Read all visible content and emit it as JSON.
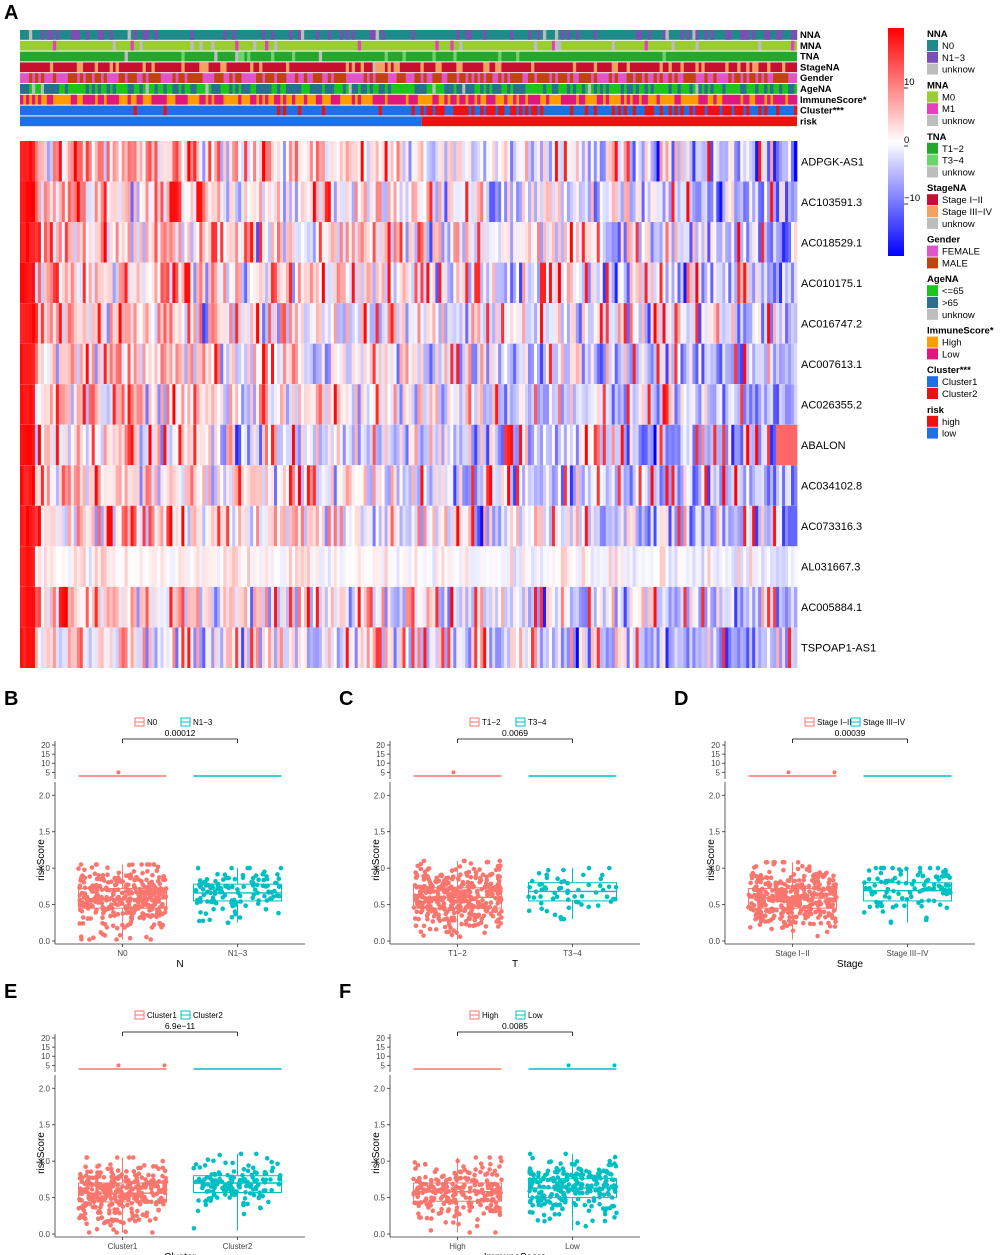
{
  "panel_A": {
    "letter": "A",
    "annotation_tracks": [
      "NNA",
      "MNA",
      "TNA",
      "StageNA",
      "Gender",
      "AgeNA",
      "ImmuneScore*",
      "Cluster***",
      "risk"
    ],
    "genes": [
      "ADPGK-AS1",
      "AC103591.3",
      "AC018529.1",
      "AC010175.1",
      "AC016747.2",
      "AC007613.1",
      "AC026355.2",
      "ABALON",
      "AC034102.8",
      "AC073316.3",
      "AL031667.3",
      "AC005884.1",
      "TSPOAP1-AS1"
    ],
    "colorbar": {
      "ticks": [
        "10",
        "0",
        "−10"
      ],
      "high_color": "#ff0000",
      "mid_color": "#ffffff",
      "low_color": "#0000ff"
    },
    "legend": [
      {
        "title": "NNA",
        "items": [
          {
            "label": "N0",
            "color": "#1f8a8a"
          },
          {
            "label": "N1−3",
            "color": "#7b4fb3"
          },
          {
            "label": "unknow",
            "color": "#bdbdbd"
          }
        ]
      },
      {
        "title": "MNA",
        "items": [
          {
            "label": "M0",
            "color": "#9acd32"
          },
          {
            "label": "M1",
            "color": "#e83fbd"
          },
          {
            "label": "unknow",
            "color": "#bdbdbd"
          }
        ]
      },
      {
        "title": "TNA",
        "items": [
          {
            "label": "T1−2",
            "color": "#22a82a"
          },
          {
            "label": "T3−4",
            "color": "#6bd46b"
          },
          {
            "label": "unknow",
            "color": "#bdbdbd"
          }
        ]
      },
      {
        "title": "StageNA",
        "items": [
          {
            "label": "Stage I−II",
            "color": "#c8102e"
          },
          {
            "label": "Stage III−IV",
            "color": "#f4a261"
          },
          {
            "label": "unknow",
            "color": "#bdbdbd"
          }
        ]
      },
      {
        "title": "Gender",
        "items": [
          {
            "label": "FEMALE",
            "color": "#e056c8"
          },
          {
            "label": "MALE",
            "color": "#c1440e"
          }
        ]
      },
      {
        "title": "AgeNA",
        "items": [
          {
            "label": "<=65",
            "color": "#1ec41e"
          },
          {
            "label": ">65",
            "color": "#2a6f8f"
          },
          {
            "label": "unknow",
            "color": "#bdbdbd"
          }
        ]
      },
      {
        "title": "ImmuneScore*",
        "items": [
          {
            "label": "High",
            "color": "#ff9d00"
          },
          {
            "label": "Low",
            "color": "#e0177e"
          }
        ]
      },
      {
        "title": "Cluster***",
        "items": [
          {
            "label": "Cluster1",
            "color": "#1f6fe5"
          },
          {
            "label": "Cluster2",
            "color": "#ee1111"
          }
        ]
      },
      {
        "title": "risk",
        "items": [
          {
            "label": "high",
            "color": "#ee1111"
          },
          {
            "label": "low",
            "color": "#1f6fe5"
          }
        ]
      }
    ]
  },
  "chart_data": [
    {
      "panel": "B",
      "type": "boxplot+jitter",
      "categories": [
        "N0",
        "N1−3"
      ],
      "legend": [
        "N0",
        "N1−3"
      ],
      "xlabel": "N",
      "ylabel": "riskScore",
      "p_value": "0.00012",
      "colors": [
        "#f8766d",
        "#00bfc4"
      ],
      "ylim_lower": [
        0,
        2.1
      ],
      "upper_ticks": [
        "20",
        "15",
        "10",
        "5"
      ],
      "lower_ticks": [
        "0.0",
        "0.5",
        "1.0",
        "1.5",
        "2.0"
      ],
      "boxes": [
        {
          "q1": 0.45,
          "median": 0.58,
          "q3": 0.72,
          "min": 0.02,
          "max": 1.05
        },
        {
          "q1": 0.55,
          "median": 0.66,
          "q3": 0.78,
          "min": 0.25,
          "max": 1.0
        }
      ],
      "n_points": [
        340,
        130
      ],
      "outliers": [
        [
          "5"
        ],
        []
      ]
    },
    {
      "panel": "C",
      "type": "boxplot+jitter",
      "categories": [
        "T1−2",
        "T3−4"
      ],
      "legend": [
        "T1−2",
        "T3−4"
      ],
      "xlabel": "T",
      "ylabel": "riskScore",
      "p_value": "0.0069",
      "colors": [
        "#f8766d",
        "#00bfc4"
      ],
      "ylim_lower": [
        0,
        2.1
      ],
      "upper_ticks": [
        "20",
        "15",
        "10",
        "5"
      ],
      "lower_ticks": [
        "0.0",
        "0.5",
        "1.0",
        "1.5",
        "2.0"
      ],
      "boxes": [
        {
          "q1": 0.45,
          "median": 0.6,
          "q3": 0.73,
          "min": 0.02,
          "max": 1.1
        },
        {
          "q1": 0.55,
          "median": 0.68,
          "q3": 0.8,
          "min": 0.3,
          "max": 1.0
        }
      ],
      "n_points": [
        380,
        60
      ],
      "outliers": [
        [
          "5"
        ],
        []
      ]
    },
    {
      "panel": "D",
      "type": "boxplot+jitter",
      "categories": [
        "Stage I−II",
        "Stage III−IV"
      ],
      "legend": [
        "Stage I−II",
        "Stage III−IV"
      ],
      "xlabel": "Stage",
      "ylabel": "riskScore",
      "p_value": "0.00039",
      "colors": [
        "#f8766d",
        "#00bfc4"
      ],
      "ylim_lower": [
        0,
        2.1
      ],
      "upper_ticks": [
        "20",
        "15",
        "10",
        "5"
      ],
      "lower_ticks": [
        "0.0",
        "0.5",
        "1.0",
        "1.5",
        "2.0"
      ],
      "boxes": [
        {
          "q1": 0.45,
          "median": 0.59,
          "q3": 0.72,
          "min": 0.02,
          "max": 1.08
        },
        {
          "q1": 0.55,
          "median": 0.69,
          "q3": 0.8,
          "min": 0.25,
          "max": 1.0
        }
      ],
      "n_points": [
        360,
        110
      ],
      "outliers": [
        [
          "5",
          "5"
        ],
        []
      ]
    },
    {
      "panel": "E",
      "type": "boxplot+jitter",
      "categories": [
        "Cluster1",
        "Cluster2"
      ],
      "legend": [
        "Cluster1",
        "Cluster2"
      ],
      "xlabel": "Cluster",
      "ylabel": "riskScore",
      "p_value": "6.9e−11",
      "colors": [
        "#f8766d",
        "#00bfc4"
      ],
      "ylim_lower": [
        0,
        2.1
      ],
      "upper_ticks": [
        "20",
        "15",
        "10",
        "5"
      ],
      "lower_ticks": [
        "0.0",
        "0.5",
        "1.0",
        "1.5",
        "2.0"
      ],
      "boxes": [
        {
          "q1": 0.44,
          "median": 0.56,
          "q3": 0.7,
          "min": 0.02,
          "max": 1.05
        },
        {
          "q1": 0.57,
          "median": 0.7,
          "q3": 0.8,
          "min": 0.05,
          "max": 1.1
        }
      ],
      "n_points": [
        330,
        150
      ],
      "outliers": [
        [
          "5",
          "5"
        ],
        []
      ]
    },
    {
      "panel": "F",
      "type": "boxplot+jitter",
      "categories": [
        "High",
        "Low"
      ],
      "legend": [
        "High",
        "Low"
      ],
      "xlabel": "ImmuneScore",
      "ylabel": "riskScore",
      "p_value": "0.0085",
      "colors": [
        "#f8766d",
        "#00bfc4"
      ],
      "ylim_lower": [
        0,
        2.1
      ],
      "upper_ticks": [
        "20",
        "15",
        "10",
        "5"
      ],
      "lower_ticks": [
        "0.0",
        "0.5",
        "1.0",
        "1.5",
        "2.0"
      ],
      "boxes": [
        {
          "q1": 0.45,
          "median": 0.58,
          "q3": 0.7,
          "min": 0.02,
          "max": 1.05
        },
        {
          "q1": 0.5,
          "median": 0.63,
          "q3": 0.76,
          "min": 0.05,
          "max": 1.1
        }
      ],
      "n_points": [
        240,
        240
      ],
      "outliers": [
        [],
        [
          "5",
          "5"
        ]
      ]
    }
  ]
}
